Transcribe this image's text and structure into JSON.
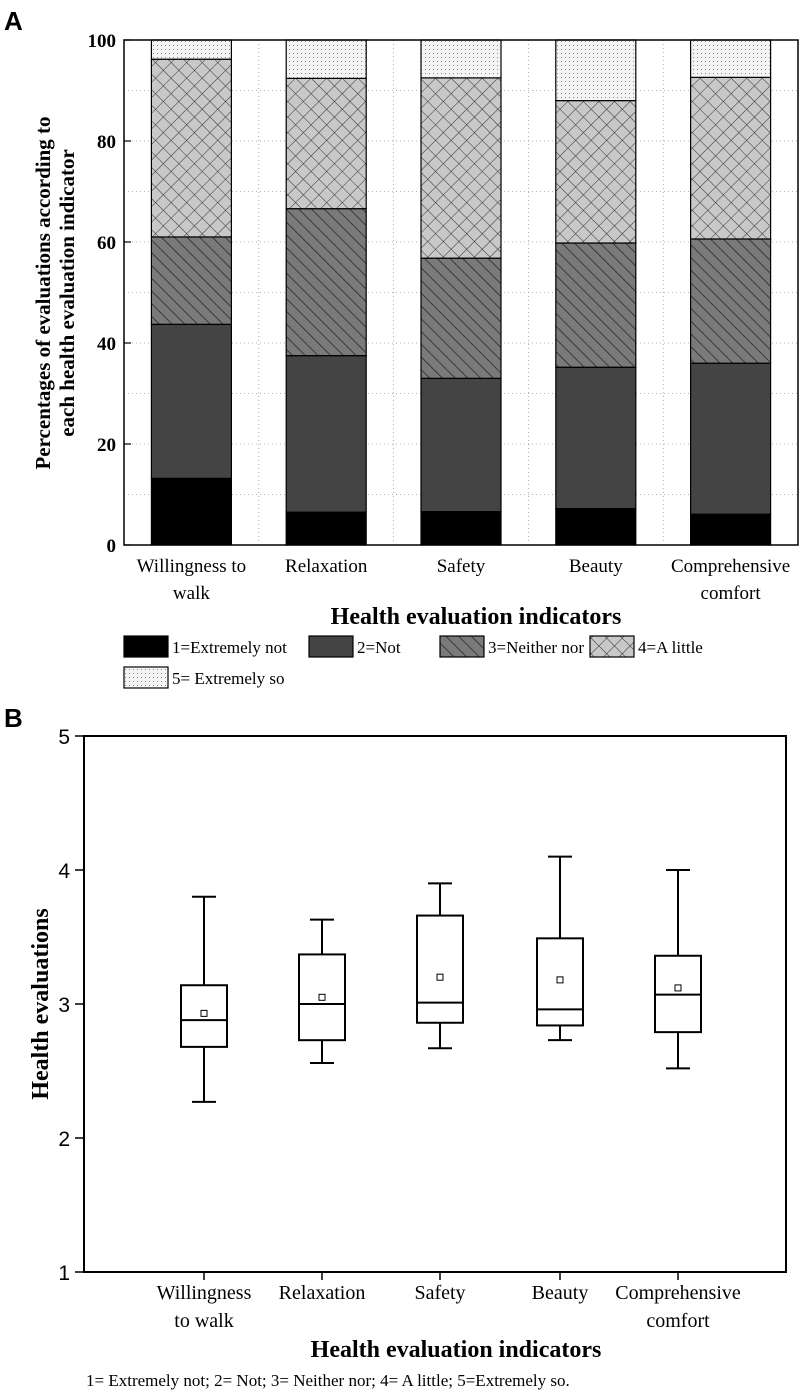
{
  "colors": {
    "ink": "#000000",
    "paper": "#ffffff",
    "level1": "#000000",
    "level2": "#444444",
    "level3": "#7a7a7a",
    "level4": "#c4c4c4",
    "level5": "#f2f2f2",
    "grid": "#9a9a9a"
  },
  "chart_data": [
    {
      "panel": "A",
      "type": "bar",
      "stacked": true,
      "title": "",
      "xlabel": "Health evaluation indicators",
      "ylabel_lines": [
        "Percentages of evaluations according to",
        "each health evaluation indicator"
      ],
      "ylim": [
        0,
        100
      ],
      "yticks": [
        0,
        20,
        40,
        60,
        80,
        100
      ],
      "grid": true,
      "categories": [
        [
          "Willingness to",
          "walk"
        ],
        [
          "Relaxation"
        ],
        [
          "Safety"
        ],
        [
          "Beauty"
        ],
        [
          "Comprehensive",
          "comfort"
        ]
      ],
      "series": [
        {
          "name": "1=Extremely not",
          "pattern": "solid-black",
          "values": [
            13.2,
            6.5,
            6.6,
            7.2,
            6.1
          ]
        },
        {
          "name": "2=Not",
          "pattern": "solid-dark",
          "values": [
            30.5,
            31.0,
            26.4,
            28.0,
            29.9
          ]
        },
        {
          "name": "3=Neither nor",
          "pattern": "diagonal",
          "values": [
            17.3,
            29.1,
            23.8,
            24.6,
            24.6
          ]
        },
        {
          "name": "4=A little",
          "pattern": "crosshatch",
          "values": [
            35.2,
            25.8,
            35.7,
            28.2,
            32.0
          ]
        },
        {
          "name": "5= Extremely so",
          "pattern": "dotted",
          "values": [
            3.8,
            7.6,
            7.5,
            12.0,
            7.4
          ]
        }
      ],
      "legend_position": "bottom"
    },
    {
      "panel": "B",
      "type": "box",
      "title": "",
      "xlabel": "Health evaluation indicators",
      "ylabel": "Health evaluations",
      "ylim": [
        1,
        5
      ],
      "yticks": [
        1,
        2,
        3,
        4,
        5
      ],
      "categories": [
        [
          "Willingness",
          "to walk"
        ],
        [
          "Relaxation"
        ],
        [
          "Safety"
        ],
        [
          "Beauty"
        ],
        [
          "Comprehensive",
          "comfort"
        ]
      ],
      "boxes": [
        {
          "whisker_low": 2.27,
          "q1": 2.68,
          "median": 2.88,
          "q3": 3.14,
          "whisker_high": 3.8,
          "mean": 2.93
        },
        {
          "whisker_low": 2.56,
          "q1": 2.73,
          "median": 3.0,
          "q3": 3.37,
          "whisker_high": 3.63,
          "mean": 3.05
        },
        {
          "whisker_low": 2.67,
          "q1": 2.86,
          "median": 3.01,
          "q3": 3.66,
          "whisker_high": 3.9,
          "mean": 3.2
        },
        {
          "whisker_low": 2.73,
          "q1": 2.84,
          "median": 2.96,
          "q3": 3.49,
          "whisker_high": 4.1,
          "mean": 3.18
        },
        {
          "whisker_low": 2.52,
          "q1": 2.79,
          "median": 3.07,
          "q3": 3.36,
          "whisker_high": 4.0,
          "mean": 3.12
        }
      ],
      "footnote": "1= Extremely not; 2= Not; 3= Neither nor; 4= A little; 5=Extremely so."
    }
  ]
}
